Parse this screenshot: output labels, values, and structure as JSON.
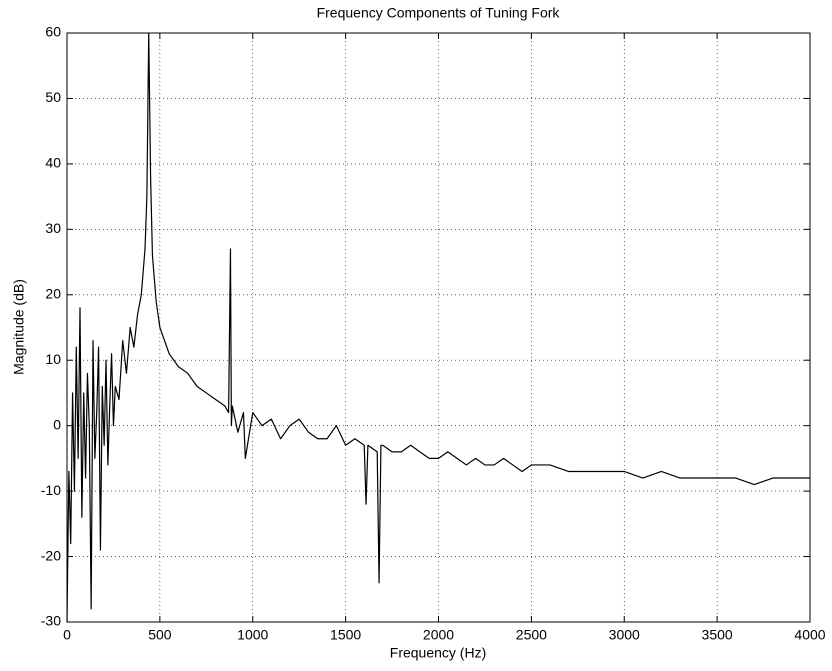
{
  "chart_data": {
    "type": "line",
    "title": "Frequency Components of Tuning Fork",
    "x_label": "Frequency (Hz)",
    "y_label": "Magnitude (dB)",
    "color": "#000000",
    "grid": true,
    "x": [
      0,
      10,
      20,
      30,
      40,
      50,
      60,
      70,
      80,
      90,
      100,
      110,
      120,
      130,
      140,
      150,
      160,
      170,
      180,
      190,
      200,
      210,
      220,
      230,
      240,
      250,
      260,
      280,
      300,
      320,
      340,
      360,
      380,
      400,
      420,
      430,
      440,
      450,
      460,
      480,
      500,
      550,
      600,
      650,
      700,
      750,
      800,
      850,
      870,
      880,
      885,
      890,
      920,
      950,
      960,
      1000,
      1050,
      1100,
      1150,
      1200,
      1250,
      1300,
      1350,
      1400,
      1450,
      1500,
      1550,
      1600,
      1610,
      1620,
      1670,
      1680,
      1690,
      1700,
      1750,
      1800,
      1850,
      1900,
      1950,
      2000,
      2050,
      2100,
      2150,
      2200,
      2250,
      2300,
      2350,
      2400,
      2450,
      2500,
      2600,
      2700,
      2800,
      2900,
      3000,
      3100,
      3200,
      3300,
      3400,
      3500,
      3600,
      3700,
      3800,
      3900,
      4000
    ],
    "values": [
      -30,
      -7,
      -18,
      5,
      -10,
      12,
      -5,
      18,
      -14,
      5,
      -8,
      8,
      0,
      -28,
      13,
      -5,
      2,
      12,
      -19,
      6,
      -3,
      10,
      -6,
      3,
      11,
      0,
      6,
      4,
      13,
      8,
      15,
      12,
      17,
      20,
      27,
      35,
      60,
      38,
      26,
      19,
      15,
      11,
      9,
      8,
      6,
      5,
      4,
      3,
      2,
      27,
      0,
      3,
      -1,
      2,
      -5,
      2,
      0,
      1,
      -2,
      0,
      1,
      -1,
      -2,
      -2,
      0,
      -3,
      -2,
      -3,
      -12,
      -3,
      -4,
      -24,
      -3,
      -3,
      -4,
      -4,
      -3,
      -4,
      -5,
      -5,
      -4,
      -5,
      -6,
      -5,
      -6,
      -6,
      -5,
      -6,
      -7,
      -6,
      -6,
      -7,
      -7,
      -7,
      -7,
      -8,
      -7,
      -8,
      -8,
      -8,
      -8,
      -9,
      -8,
      -8,
      -8
    ],
    "xlim": [
      0,
      4000
    ],
    "xticks": [
      0,
      500,
      1000,
      1500,
      2000,
      2500,
      3000,
      3500,
      4000
    ],
    "ylim": [
      -30,
      60
    ],
    "yticks": [
      -30,
      -20,
      -10,
      0,
      10,
      20,
      30,
      40,
      50,
      60
    ]
  }
}
